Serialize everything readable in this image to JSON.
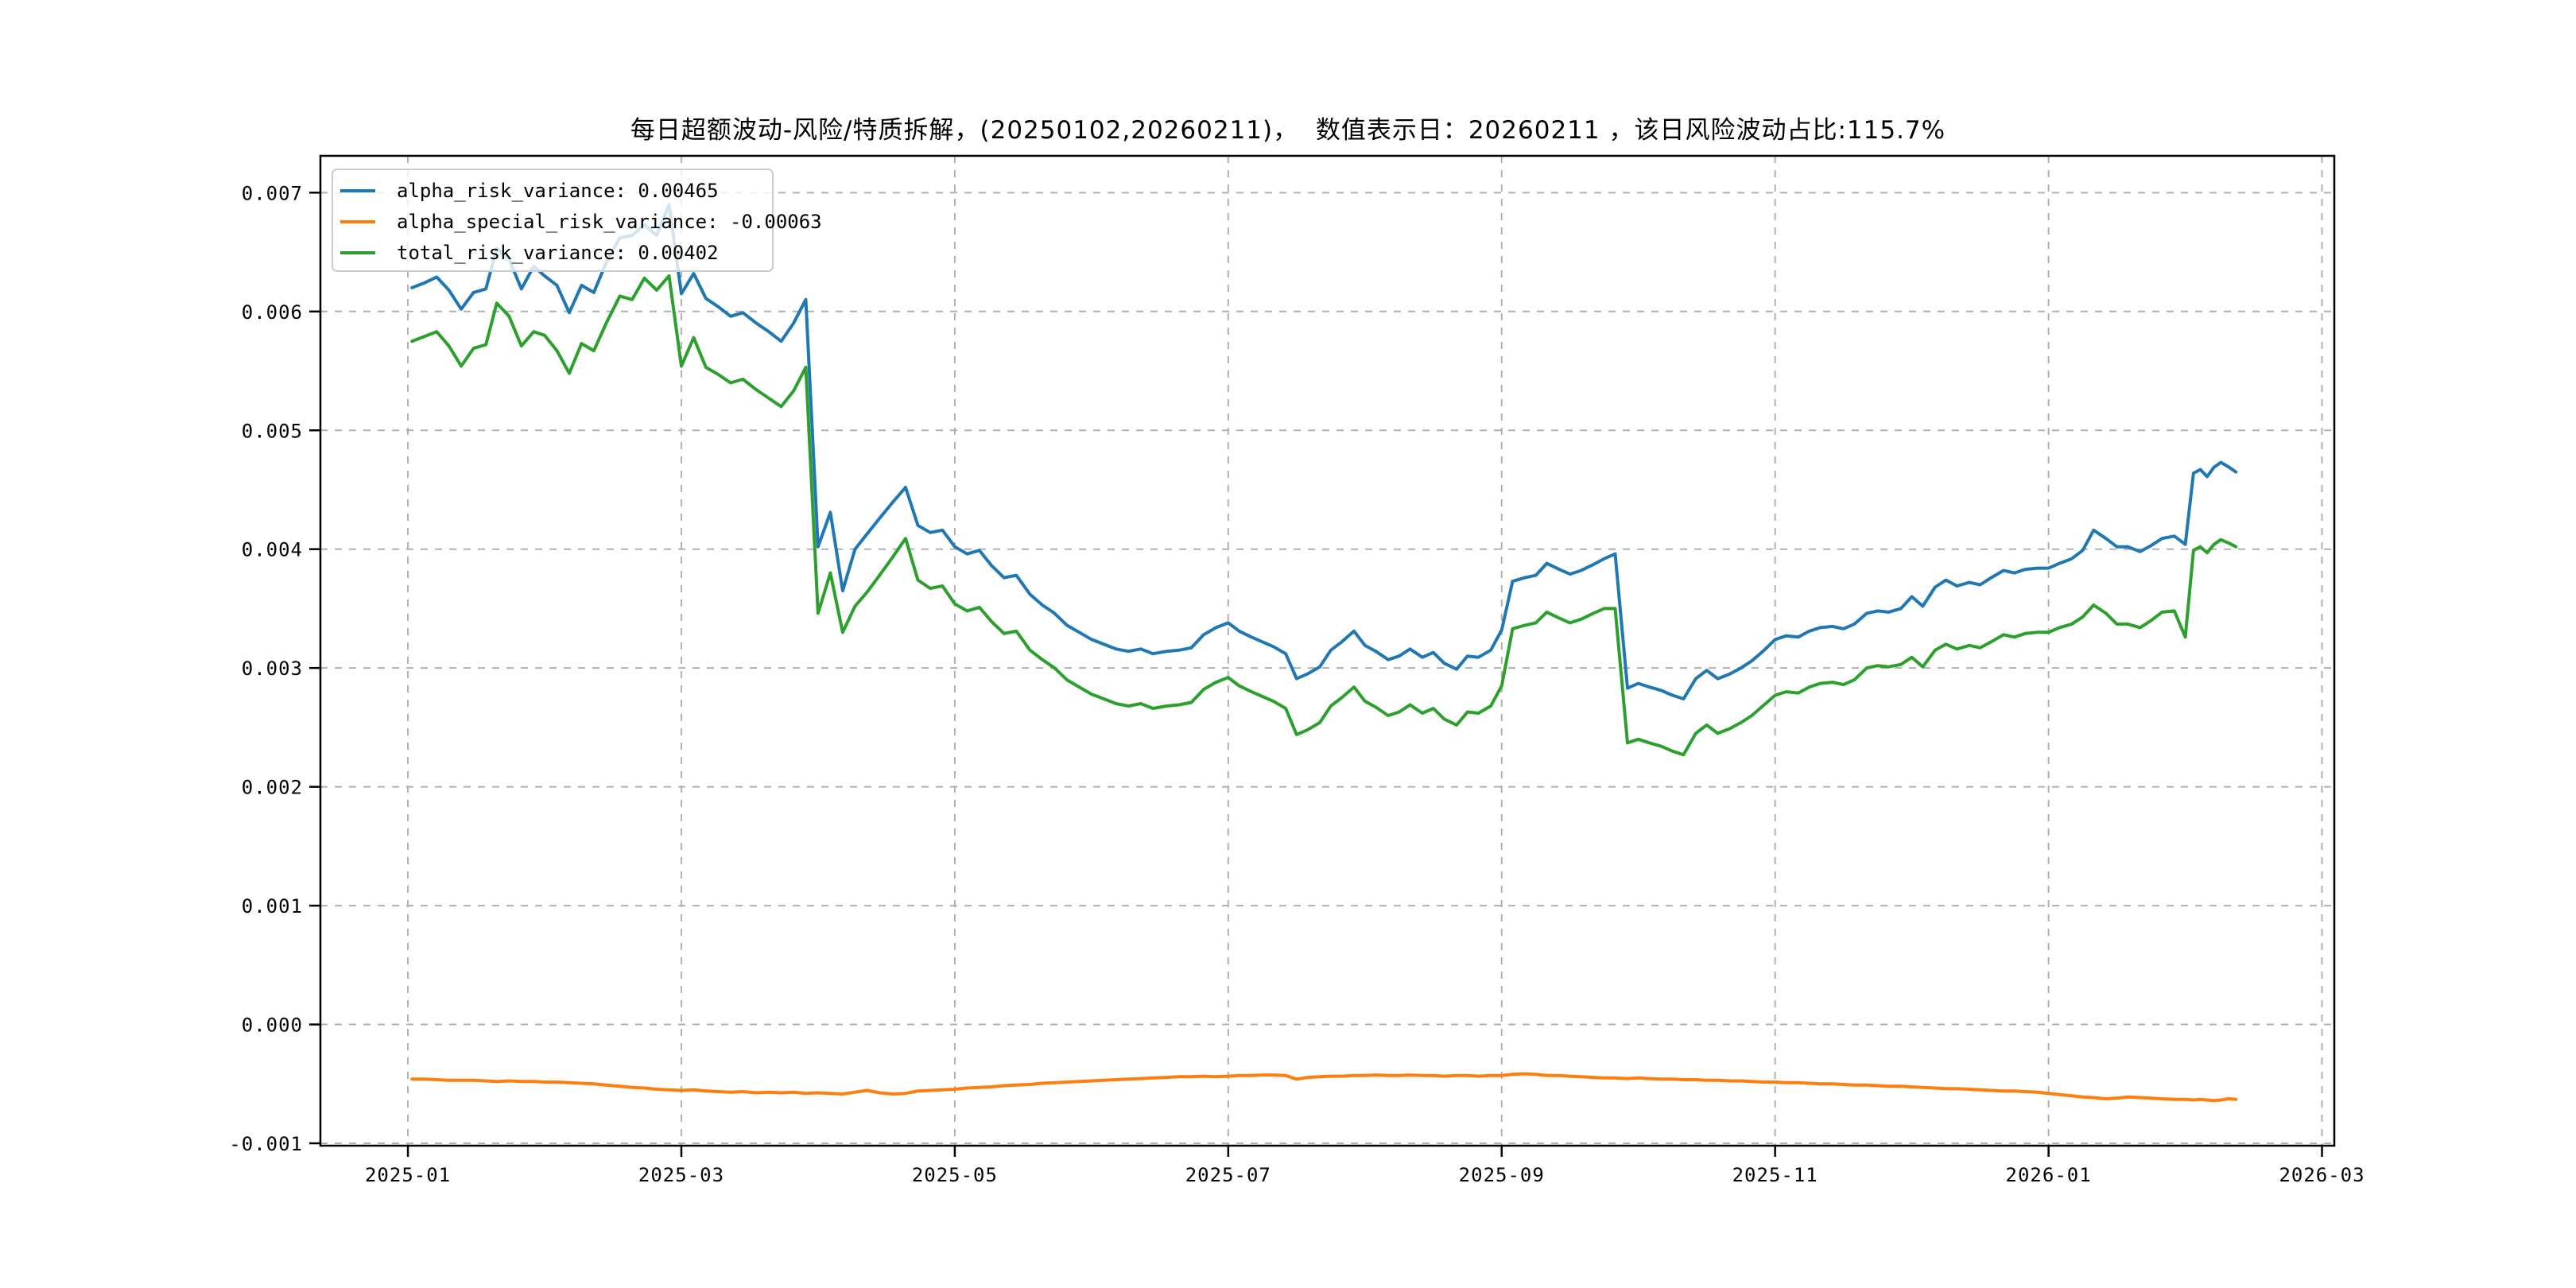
{
  "title": "每日超额波动-风险/特质拆解，(20250102,20260211)，  数值表示日：20260211 ，该日风险波动占比:115.7%",
  "chart_data": {
    "type": "line",
    "title": "每日超额波动-风险/特质拆解，(20250102,20260211)，  数值表示日：20260211 ，该日风险波动占比:115.7%",
    "xlabel": "",
    "ylabel": "",
    "grid": true,
    "grid_style": "dashed",
    "grid_color": "#b0b0b0",
    "legend_position": "upper left",
    "date_range": [
      "20250102",
      "20260211"
    ],
    "value_display_date": "20260211",
    "risk_ratio_pct": "115.7%",
    "x_unit": "months since 2025-01-01",
    "xlim": [
      -0.64,
      14.09
    ],
    "ylim": [
      -0.00102,
      0.00731
    ],
    "xticks": {
      "positions": [
        0,
        2,
        4,
        6,
        8,
        10,
        12,
        14
      ],
      "labels": [
        "2025-01",
        "2025-03",
        "2025-05",
        "2025-07",
        "2025-09",
        "2025-11",
        "2026-01",
        "2026-03"
      ]
    },
    "yticks": {
      "positions": [
        0.007,
        0.006,
        0.005,
        0.004,
        0.003,
        0.002,
        0.001,
        0.0,
        -0.001
      ],
      "labels": [
        "0.007",
        "0.006",
        "0.005",
        "0.004",
        "0.003",
        "0.002",
        "0.001",
        "0.000",
        "-0.001"
      ]
    },
    "x": [
      0.03,
      0.12,
      0.21,
      0.3,
      0.39,
      0.48,
      0.57,
      0.65,
      0.74,
      0.83,
      0.92,
      1.0,
      1.09,
      1.18,
      1.27,
      1.36,
      1.45,
      1.55,
      1.64,
      1.73,
      1.82,
      1.91,
      2.0,
      2.09,
      2.18,
      2.27,
      2.36,
      2.45,
      2.55,
      2.64,
      2.73,
      2.82,
      2.91,
      3.0,
      3.09,
      3.18,
      3.27,
      3.36,
      3.45,
      3.55,
      3.64,
      3.73,
      3.82,
      3.91,
      4.0,
      4.09,
      4.18,
      4.27,
      4.36,
      4.45,
      4.55,
      4.64,
      4.73,
      4.82,
      4.91,
      5.0,
      5.09,
      5.18,
      5.27,
      5.36,
      5.45,
      5.55,
      5.64,
      5.73,
      5.82,
      5.91,
      6.0,
      6.08,
      6.17,
      6.25,
      6.33,
      6.42,
      6.5,
      6.58,
      6.67,
      6.75,
      6.83,
      6.92,
      7.0,
      7.08,
      7.17,
      7.25,
      7.33,
      7.42,
      7.5,
      7.58,
      7.67,
      7.75,
      7.83,
      7.92,
      8.0,
      8.08,
      8.17,
      8.25,
      8.33,
      8.42,
      8.5,
      8.58,
      8.67,
      8.75,
      8.83,
      8.92,
      9.0,
      9.08,
      9.17,
      9.25,
      9.33,
      9.42,
      9.5,
      9.58,
      9.67,
      9.75,
      9.83,
      9.92,
      10.0,
      10.08,
      10.17,
      10.25,
      10.33,
      10.42,
      10.5,
      10.58,
      10.67,
      10.75,
      10.83,
      10.92,
      11.0,
      11.08,
      11.17,
      11.25,
      11.33,
      11.42,
      11.5,
      11.58,
      11.67,
      11.75,
      11.83,
      11.92,
      12.0,
      12.08,
      12.17,
      12.25,
      12.33,
      12.42,
      12.5,
      12.58,
      12.67,
      12.75,
      12.83,
      12.92,
      13.0,
      13.06,
      13.11,
      13.16,
      13.21,
      13.26,
      13.32,
      13.37
    ],
    "series": [
      {
        "name": "alpha_risk_variance",
        "legend": "alpha_risk_variance: 0.00465",
        "last_value": 0.00465,
        "color": "#1f77b4",
        "values": [
          0.0062,
          0.00624,
          0.00629,
          0.00618,
          0.00602,
          0.00616,
          0.00619,
          0.00653,
          0.00644,
          0.00619,
          0.00638,
          0.0063,
          0.00622,
          0.00599,
          0.00622,
          0.00616,
          0.00641,
          0.00662,
          0.00664,
          0.00673,
          0.00664,
          0.0069,
          0.00615,
          0.00632,
          0.00611,
          0.00604,
          0.00596,
          0.00599,
          0.0059,
          0.00583,
          0.00575,
          0.0059,
          0.0061,
          0.00402,
          0.00431,
          0.00365,
          0.004,
          0.00413,
          0.00426,
          0.0044,
          0.00452,
          0.0042,
          0.00414,
          0.00416,
          0.00402,
          0.00396,
          0.00399,
          0.00386,
          0.00376,
          0.00378,
          0.00362,
          0.00353,
          0.00346,
          0.00336,
          0.0033,
          0.00324,
          0.0032,
          0.00316,
          0.00314,
          0.00316,
          0.00312,
          0.00314,
          0.00315,
          0.00317,
          0.00328,
          0.00334,
          0.00338,
          0.00331,
          0.00326,
          0.00322,
          0.00318,
          0.00312,
          0.00291,
          0.00295,
          0.00301,
          0.00315,
          0.00322,
          0.00331,
          0.00319,
          0.00314,
          0.00307,
          0.0031,
          0.00316,
          0.00309,
          0.00313,
          0.00304,
          0.00299,
          0.0031,
          0.00309,
          0.00315,
          0.00332,
          0.00373,
          0.00376,
          0.00378,
          0.00388,
          0.00383,
          0.00379,
          0.00382,
          0.00387,
          0.00392,
          0.00396,
          0.00283,
          0.00287,
          0.00284,
          0.00281,
          0.00277,
          0.00274,
          0.00291,
          0.00298,
          0.00291,
          0.00295,
          0.003,
          0.00306,
          0.00315,
          0.00324,
          0.00327,
          0.00326,
          0.00331,
          0.00334,
          0.00335,
          0.00333,
          0.00337,
          0.00346,
          0.00348,
          0.00347,
          0.0035,
          0.0036,
          0.00352,
          0.00368,
          0.00374,
          0.00369,
          0.00372,
          0.0037,
          0.00376,
          0.00382,
          0.0038,
          0.00383,
          0.00384,
          0.00384,
          0.00388,
          0.00392,
          0.00399,
          0.00416,
          0.00409,
          0.00402,
          0.00402,
          0.00398,
          0.00403,
          0.00409,
          0.00411,
          0.00404,
          0.00464,
          0.00467,
          0.00461,
          0.00469,
          0.00473,
          0.00469,
          0.00465
        ]
      },
      {
        "name": "alpha_special_risk_variance",
        "legend": "alpha_special_risk_variance: -0.00063",
        "last_value": -0.00063,
        "color": "#ff7f0e",
        "values": [
          -0.00046,
          -0.00046,
          -0.000465,
          -0.00047,
          -0.00047,
          -0.00047,
          -0.000475,
          -0.00048,
          -0.000475,
          -0.00048,
          -0.00048,
          -0.000485,
          -0.000485,
          -0.00049,
          -0.000495,
          -0.0005,
          -0.00051,
          -0.00052,
          -0.00053,
          -0.000535,
          -0.000545,
          -0.00055,
          -0.000555,
          -0.00055,
          -0.00056,
          -0.000565,
          -0.00057,
          -0.000565,
          -0.000575,
          -0.00057,
          -0.000575,
          -0.00057,
          -0.00058,
          -0.000575,
          -0.00058,
          -0.000585,
          -0.00057,
          -0.000555,
          -0.000575,
          -0.000585,
          -0.00058,
          -0.00056,
          -0.000555,
          -0.00055,
          -0.000545,
          -0.000535,
          -0.00053,
          -0.000525,
          -0.000515,
          -0.00051,
          -0.000505,
          -0.000495,
          -0.00049,
          -0.000485,
          -0.00048,
          -0.000475,
          -0.00047,
          -0.000465,
          -0.00046,
          -0.000455,
          -0.00045,
          -0.000445,
          -0.00044,
          -0.00044,
          -0.000435,
          -0.00044,
          -0.000435,
          -0.00043,
          -0.00043,
          -0.000425,
          -0.000425,
          -0.00043,
          -0.00046,
          -0.000445,
          -0.00044,
          -0.000435,
          -0.000435,
          -0.00043,
          -0.00043,
          -0.000425,
          -0.00043,
          -0.00043,
          -0.000425,
          -0.00043,
          -0.00043,
          -0.000435,
          -0.00043,
          -0.00043,
          -0.000435,
          -0.00043,
          -0.00043,
          -0.00042,
          -0.000415,
          -0.00042,
          -0.00043,
          -0.00043,
          -0.000435,
          -0.00044,
          -0.000445,
          -0.00045,
          -0.00045,
          -0.000455,
          -0.00045,
          -0.000455,
          -0.00046,
          -0.00046,
          -0.000465,
          -0.000465,
          -0.00047,
          -0.00047,
          -0.000475,
          -0.000475,
          -0.00048,
          -0.000485,
          -0.000485,
          -0.00049,
          -0.00049,
          -0.000495,
          -0.0005,
          -0.0005,
          -0.000505,
          -0.00051,
          -0.00051,
          -0.000515,
          -0.00052,
          -0.00052,
          -0.000525,
          -0.00053,
          -0.000535,
          -0.00054,
          -0.00054,
          -0.000545,
          -0.00055,
          -0.000555,
          -0.00056,
          -0.00056,
          -0.000565,
          -0.00057,
          -0.00058,
          -0.00059,
          -0.0006,
          -0.00061,
          -0.000615,
          -0.000625,
          -0.00062,
          -0.00061,
          -0.000615,
          -0.00062,
          -0.000625,
          -0.00063,
          -0.00063,
          -0.000635,
          -0.00063,
          -0.000635,
          -0.00064,
          -0.000635,
          -0.000625,
          -0.00063
        ]
      },
      {
        "name": "total_risk_variance",
        "legend": "total_risk_variance: 0.00402",
        "last_value": 0.00402,
        "color": "#2ca02c",
        "values": [
          0.00575,
          0.00579,
          0.00583,
          0.00571,
          0.00554,
          0.00569,
          0.00572,
          0.00607,
          0.00596,
          0.00571,
          0.00583,
          0.0058,
          0.00567,
          0.00548,
          0.00573,
          0.00567,
          0.0059,
          0.00613,
          0.0061,
          0.00628,
          0.00618,
          0.0063,
          0.00554,
          0.00578,
          0.00553,
          0.00547,
          0.0054,
          0.00543,
          0.00534,
          0.00527,
          0.0052,
          0.00533,
          0.00553,
          0.00346,
          0.0038,
          0.0033,
          0.00352,
          0.00364,
          0.00378,
          0.00394,
          0.00409,
          0.00374,
          0.00367,
          0.00369,
          0.00354,
          0.00348,
          0.00351,
          0.00339,
          0.00329,
          0.00331,
          0.00315,
          0.00307,
          0.003,
          0.0029,
          0.00284,
          0.00278,
          0.00274,
          0.0027,
          0.00268,
          0.0027,
          0.00266,
          0.00268,
          0.00269,
          0.00271,
          0.00282,
          0.00288,
          0.00292,
          0.00285,
          0.0028,
          0.00276,
          0.00272,
          0.00266,
          0.00244,
          0.00248,
          0.00254,
          0.00268,
          0.00275,
          0.00284,
          0.00272,
          0.00267,
          0.0026,
          0.00263,
          0.00269,
          0.00262,
          0.00266,
          0.00257,
          0.00252,
          0.00263,
          0.00262,
          0.00268,
          0.00285,
          0.00333,
          0.00336,
          0.00338,
          0.00347,
          0.00342,
          0.00338,
          0.00341,
          0.00346,
          0.0035,
          0.0035,
          0.00237,
          0.0024,
          0.00237,
          0.00234,
          0.0023,
          0.00227,
          0.00245,
          0.00252,
          0.00245,
          0.00249,
          0.00254,
          0.0026,
          0.00269,
          0.00277,
          0.0028,
          0.00279,
          0.00284,
          0.00287,
          0.00288,
          0.00286,
          0.0029,
          0.003,
          0.00302,
          0.00301,
          0.00303,
          0.00309,
          0.00301,
          0.00315,
          0.0032,
          0.00316,
          0.00319,
          0.00317,
          0.00322,
          0.00328,
          0.00326,
          0.00329,
          0.0033,
          0.0033,
          0.00334,
          0.00337,
          0.00343,
          0.00353,
          0.00346,
          0.00337,
          0.00337,
          0.00334,
          0.0034,
          0.00347,
          0.00348,
          0.00326,
          0.00399,
          0.00402,
          0.00397,
          0.00404,
          0.00408,
          0.00405,
          0.00402
        ]
      }
    ]
  }
}
